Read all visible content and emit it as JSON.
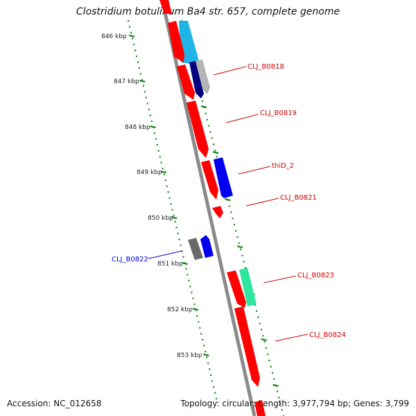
{
  "title": "Clostridium botulinum Ba4 str. 657, complete genome",
  "footer": {
    "accession": "Accession: NC_012658",
    "summary": "Topology: circular; Length: 3,977,794 bp; Genes: 3,799"
  },
  "ruler": {
    "labels": [
      "846 kbp",
      "847 kbp",
      "848 kbp",
      "849 kbp",
      "850 kbp",
      "851 kbp",
      "852 kbp",
      "853 kbp"
    ]
  },
  "colors": {
    "backbone": "#8a8a8a",
    "tick": "#1f8a1f",
    "forward_label": "#cc0000",
    "reverse_label": "#0000cc",
    "cds": "#ff0000",
    "blue": "#0000ee",
    "navy": "#000080",
    "cyan": "#21b4e6",
    "gray": "#b4b4b4",
    "dark_gray": "#6a6a6a",
    "mint": "#2fe6a0"
  },
  "labels": [
    {
      "name": "CLJ_B0818",
      "color": "#cc0000"
    },
    {
      "name": "CLJ_B0819",
      "color": "#cc0000"
    },
    {
      "name": "thiD_2",
      "color": "#cc0000"
    },
    {
      "name": "CLJ_B0821",
      "color": "#cc0000"
    },
    {
      "name": "CLJ_B0822",
      "color": "#0000cc"
    },
    {
      "name": "CLJ_B0823",
      "color": "#cc0000"
    },
    {
      "name": "CLJ_B0824",
      "color": "#cc0000"
    }
  ]
}
